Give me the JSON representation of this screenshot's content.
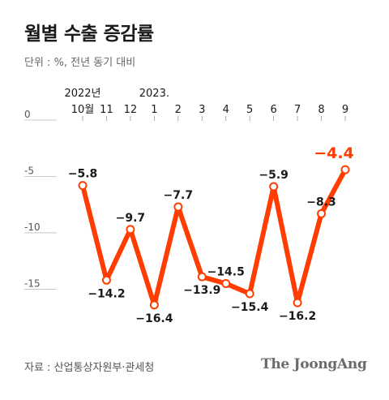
{
  "title": "월별 수출 증감률",
  "unit_label": "단위 : %, 전년 동기 대비",
  "source": "자료 : 산업통상자원부·관세청",
  "brand": "The JoongAng",
  "colors": {
    "line": "#ff3d00",
    "highlight": "#ff3d00",
    "text": "#1a1a1a",
    "axis": "#555555",
    "grid": "#bbbbbb"
  },
  "chart_data": {
    "type": "line",
    "title": "월별 수출 증감률",
    "ylabel": "단위 : %, 전년 동기 대비",
    "ylim": [
      -19,
      0
    ],
    "y_ticks": [
      "0",
      "-5",
      "-10",
      "-15"
    ],
    "y_tick_values": [
      0,
      -5,
      -10,
      -15
    ],
    "year_labels": [
      {
        "category_index": 0,
        "text": "2022년"
      },
      {
        "category_index": 3,
        "text": "2023."
      }
    ],
    "categories": [
      "10월",
      "11",
      "12",
      "1",
      "2",
      "3",
      "4",
      "5",
      "6",
      "7",
      "8",
      "9"
    ],
    "series": [
      {
        "values": [
          -5.8,
          -14.2,
          -9.7,
          -16.4,
          -7.7,
          -13.9,
          -14.5,
          -15.4,
          -5.9,
          -16.2,
          -8.3,
          -4.4
        ],
        "labels": [
          "−5.8",
          "−14.2",
          "−9.7",
          "−16.4",
          "−7.7",
          "−13.9",
          "−14.5",
          "−15.4",
          "−5.9",
          "−16.2",
          "−8.3",
          "−4.4"
        ]
      }
    ],
    "grid": false
  }
}
